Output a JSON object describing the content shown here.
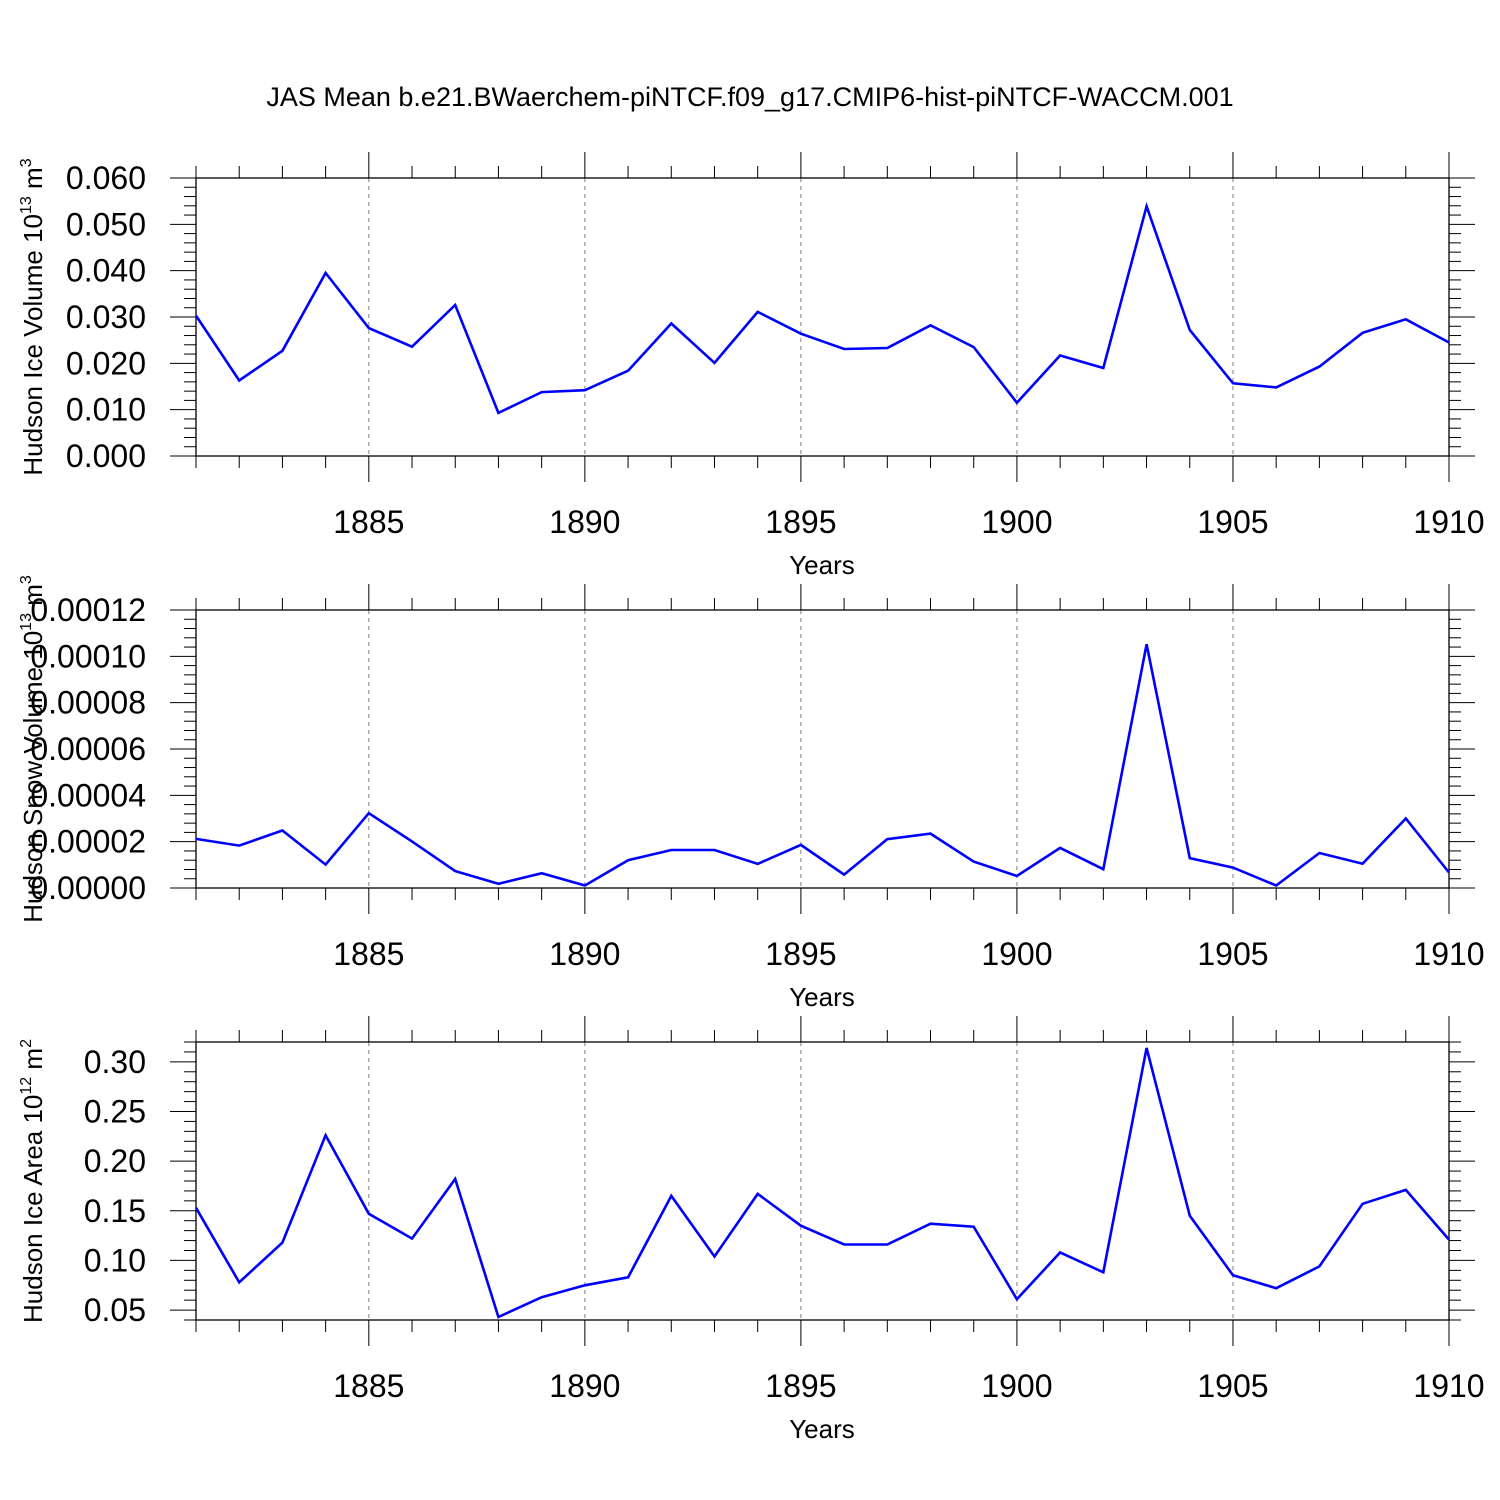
{
  "title": "JAS Mean b.e21.BWaerchem-piNTCF.f09_g17.CMIP6-hist-piNTCF-WACCM.001",
  "colors": {
    "line": "#0000ff",
    "axis": "#000000",
    "grid": "#808080",
    "background": "#ffffff"
  },
  "chart_data": [
    {
      "type": "line",
      "title": "JAS Mean b.e21.BWaerchem-piNTCF.f09_g17.CMIP6-hist-piNTCF-WACCM.001",
      "xlabel": "Years",
      "ylabel": {
        "text": "Hudson Ice Volume 10",
        "sup": "13",
        "unit": " m",
        "unit_sup": "3"
      },
      "xlim": [
        1881,
        1910
      ],
      "ylim": [
        0,
        0.06
      ],
      "x_ticks": [
        1885,
        1890,
        1895,
        1900,
        1905,
        1910
      ],
      "x_tick_labels": [
        "1885",
        "1890",
        "1895",
        "1900",
        "1905",
        "1910"
      ],
      "y_ticks": [
        0,
        0.01,
        0.02,
        0.03,
        0.04,
        0.05,
        0.06
      ],
      "y_tick_labels": [
        "0.000",
        "0.010",
        "0.020",
        "0.030",
        "0.040",
        "0.050",
        "0.060"
      ],
      "grid": "x-dashed",
      "series": [
        {
          "name": "Hudson Ice Volume",
          "x": [
            1881,
            1882,
            1883,
            1884,
            1885,
            1886,
            1887,
            1888,
            1889,
            1890,
            1891,
            1892,
            1893,
            1894,
            1895,
            1896,
            1897,
            1898,
            1899,
            1900,
            1901,
            1902,
            1903,
            1904,
            1905,
            1906,
            1907,
            1908,
            1909,
            1910
          ],
          "values": [
            0.0303,
            0.0163,
            0.0227,
            0.0395,
            0.0276,
            0.0236,
            0.0326,
            0.0093,
            0.0138,
            0.0142,
            0.0184,
            0.0286,
            0.0201,
            0.0311,
            0.0264,
            0.0231,
            0.0233,
            0.0282,
            0.0235,
            0.0115,
            0.0217,
            0.019,
            0.0539,
            0.0272,
            0.0157,
            0.0148,
            0.0193,
            0.0266,
            0.0295,
            0.0245
          ]
        }
      ]
    },
    {
      "type": "line",
      "xlabel": "Years",
      "ylabel": {
        "text": "Hudson Snow Volume 10",
        "sup": "13",
        "unit": " m",
        "unit_sup": "3"
      },
      "xlim": [
        1881,
        1910
      ],
      "ylim": [
        0,
        0.00012
      ],
      "x_ticks": [
        1885,
        1890,
        1895,
        1900,
        1905,
        1910
      ],
      "x_tick_labels": [
        "1885",
        "1890",
        "1895",
        "1900",
        "1905",
        "1910"
      ],
      "y_ticks": [
        0,
        2e-05,
        4e-05,
        6e-05,
        8e-05,
        0.0001,
        0.00012
      ],
      "y_tick_labels": [
        "0.00000",
        "0.00002",
        "0.00004",
        "0.00006",
        "0.00008",
        "0.00010",
        "0.00012"
      ],
      "grid": "x-dashed",
      "series": [
        {
          "name": "Hudson Snow Volume",
          "x": [
            1881,
            1882,
            1883,
            1884,
            1885,
            1886,
            1887,
            1888,
            1889,
            1890,
            1891,
            1892,
            1893,
            1894,
            1895,
            1896,
            1897,
            1898,
            1899,
            1900,
            1901,
            1902,
            1903,
            1904,
            1905,
            1906,
            1907,
            1908,
            1909,
            1910
          ],
          "values": [
            2.12e-05,
            1.83e-05,
            2.48e-05,
            1.01e-05,
            3.23e-05,
            2.01e-05,
            7.3e-06,
            1.8e-06,
            6.4e-06,
            1.1e-06,
            1.2e-05,
            1.64e-05,
            1.64e-05,
            1.04e-05,
            1.86e-05,
            5.8e-06,
            2.11e-05,
            2.35e-05,
            1.14e-05,
            5.2e-06,
            1.73e-05,
            8.1e-06,
            0.0001052,
            1.29e-05,
            8.8e-06,
            1.1e-06,
            1.51e-05,
            1.05e-05,
            3e-05,
            6.7e-06
          ]
        }
      ]
    },
    {
      "type": "line",
      "xlabel": "Years",
      "ylabel": {
        "text": "Hudson Ice Area 10",
        "sup": "12",
        "unit": " m",
        "unit_sup": "2"
      },
      "xlim": [
        1881,
        1910
      ],
      "ylim": [
        0.04,
        0.32
      ],
      "x_ticks": [
        1885,
        1890,
        1895,
        1900,
        1905,
        1910
      ],
      "x_tick_labels": [
        "1885",
        "1890",
        "1895",
        "1900",
        "1905",
        "1910"
      ],
      "y_ticks": [
        0.05,
        0.1,
        0.15,
        0.2,
        0.25,
        0.3
      ],
      "y_tick_labels": [
        "0.05",
        "0.10",
        "0.15",
        "0.20",
        "0.25",
        "0.30"
      ],
      "grid": "x-dashed",
      "series": [
        {
          "name": "Hudson Ice Area",
          "x": [
            1881,
            1882,
            1883,
            1884,
            1885,
            1886,
            1887,
            1888,
            1889,
            1890,
            1891,
            1892,
            1893,
            1894,
            1895,
            1896,
            1897,
            1898,
            1899,
            1900,
            1901,
            1902,
            1903,
            1904,
            1905,
            1906,
            1907,
            1908,
            1909,
            1910
          ],
          "values": [
            0.153,
            0.078,
            0.118,
            0.226,
            0.147,
            0.122,
            0.182,
            0.043,
            0.063,
            0.075,
            0.083,
            0.165,
            0.104,
            0.167,
            0.135,
            0.116,
            0.116,
            0.137,
            0.134,
            0.061,
            0.108,
            0.088,
            0.314,
            0.145,
            0.085,
            0.072,
            0.094,
            0.157,
            0.171,
            0.121
          ]
        }
      ]
    }
  ]
}
